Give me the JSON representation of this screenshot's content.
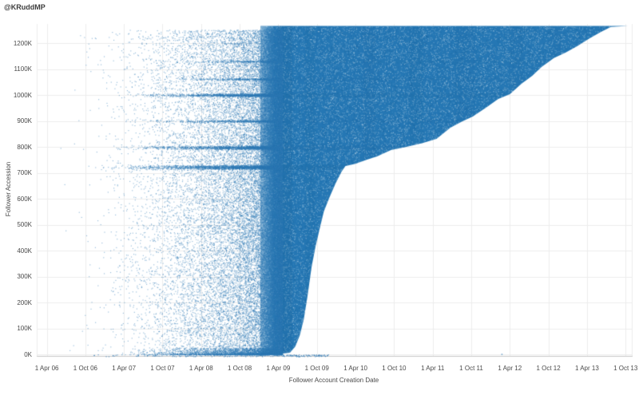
{
  "header": {
    "title": "@KRuddMP"
  },
  "chart_data": {
    "type": "scatter",
    "title": "@KRuddMP",
    "xlabel": "Follower Account Creation Date",
    "ylabel": "Follower Accession",
    "x_domain": [
      2006.12,
      2013.82
    ],
    "y_domain_k": [
      0,
      1274
    ],
    "x_ticks": [
      {
        "label": "1 Apr 06",
        "year": 2006.25
      },
      {
        "label": "1 Oct 06",
        "year": 2006.75
      },
      {
        "label": "1 Apr 07",
        "year": 2007.25
      },
      {
        "label": "1 Oct 07",
        "year": 2007.75
      },
      {
        "label": "1 Apr 08",
        "year": 2008.25
      },
      {
        "label": "1 Oct 08",
        "year": 2008.75
      },
      {
        "label": "1 Apr 09",
        "year": 2009.25
      },
      {
        "label": "1 Oct 09",
        "year": 2009.75
      },
      {
        "label": "1 Apr 10",
        "year": 2010.25
      },
      {
        "label": "1 Oct 10",
        "year": 2010.75
      },
      {
        "label": "1 Apr 11",
        "year": 2011.25
      },
      {
        "label": "1 Oct 11",
        "year": 2011.75
      },
      {
        "label": "1 Apr 12",
        "year": 2012.25
      },
      {
        "label": "1 Oct 12",
        "year": 2012.75
      },
      {
        "label": "1 Apr 13",
        "year": 2013.25
      },
      {
        "label": "1 Oct 13",
        "year": 2013.75
      }
    ],
    "y_ticks": [
      {
        "label": "0K",
        "value": 0
      },
      {
        "label": "100K",
        "value": 100
      },
      {
        "label": "200K",
        "value": 200
      },
      {
        "label": "300K",
        "value": 300
      },
      {
        "label": "400K",
        "value": 400
      },
      {
        "label": "500K",
        "value": 500
      },
      {
        "label": "600K",
        "value": 600
      },
      {
        "label": "700K",
        "value": 700
      },
      {
        "label": "800K",
        "value": 800
      },
      {
        "label": "900K",
        "value": 900
      },
      {
        "label": "1000K",
        "value": 1000
      },
      {
        "label": "1100K",
        "value": 1100
      },
      {
        "label": "1200K",
        "value": 1200
      }
    ],
    "point_color": "#2e79b5",
    "mass_color": "#2577b4",
    "overlay_dark": "#1b649c",
    "grid_color": "#ededed",
    "axis_line_color": "#c6c6c6",
    "text_color": "#4a4a4a",
    "mass_left_year": 2009.02,
    "mass_top_k": 1266,
    "mass_boundary": [
      [
        2009.2,
        0
      ],
      [
        2009.4,
        6
      ],
      [
        2009.47,
        30
      ],
      [
        2009.53,
        75
      ],
      [
        2009.58,
        135
      ],
      [
        2009.63,
        228
      ],
      [
        2009.68,
        335
      ],
      [
        2009.73,
        412
      ],
      [
        2009.79,
        489
      ],
      [
        2009.84,
        551
      ],
      [
        2009.91,
        603
      ],
      [
        2009.99,
        658
      ],
      [
        2010.07,
        705
      ],
      [
        2010.12,
        726
      ],
      [
        2010.25,
        735
      ],
      [
        2010.4,
        751
      ],
      [
        2010.53,
        763
      ],
      [
        2010.71,
        788
      ],
      [
        2010.91,
        800
      ],
      [
        2011.12,
        815
      ],
      [
        2011.3,
        831
      ],
      [
        2011.48,
        874
      ],
      [
        2011.63,
        898
      ],
      [
        2011.77,
        917
      ],
      [
        2011.94,
        951
      ],
      [
        2012.1,
        985
      ],
      [
        2012.25,
        1003
      ],
      [
        2012.4,
        1043
      ],
      [
        2012.54,
        1074
      ],
      [
        2012.66,
        1108
      ],
      [
        2012.82,
        1142
      ],
      [
        2012.97,
        1163
      ],
      [
        2013.12,
        1188
      ],
      [
        2013.28,
        1218
      ],
      [
        2013.43,
        1243
      ],
      [
        2013.56,
        1262
      ],
      [
        2013.78,
        1266
      ]
    ],
    "scatter_regions": [
      {
        "name": "pre-surge-scatter",
        "x_from": 2006.12,
        "x_to": 2009.3,
        "x_power": 0.22,
        "y_from": 0,
        "y_to": 1252,
        "y_power": 1,
        "n": 24000,
        "alpha": 0.5
      },
      {
        "name": "apr09-blend",
        "x_from": 2008.88,
        "x_to": 2009.3,
        "x_power": 0.3,
        "y_from": 0,
        "y_to": 1258,
        "y_power": 1,
        "n": 8000,
        "alpha": 0.5
      },
      {
        "name": "bottom-smear",
        "x_from": 2007.0,
        "x_to": 2009.3,
        "x_power": 0.3,
        "y_from": 0,
        "y_to": 26,
        "y_power": 2.6,
        "n": 3000,
        "alpha": 0.5
      }
    ],
    "bands": [
      {
        "k": 722,
        "half_k": 8,
        "x_from": 2006.6,
        "x_to": 2009.3,
        "x_power": 0.3,
        "n": 2400,
        "mass_to": 2010.35,
        "mass_alpha": 0.13
      },
      {
        "k": 798,
        "half_k": 7,
        "x_from": 2006.8,
        "x_to": 2009.3,
        "x_power": 0.3,
        "n": 1700,
        "mass_to": 2011.0,
        "mass_alpha": 0.1
      },
      {
        "k": 900,
        "half_k": 5,
        "x_from": 2007.1,
        "x_to": 2009.3,
        "x_power": 0.3,
        "n": 750,
        "mass_to": 2011.7,
        "mass_alpha": 0.05
      },
      {
        "k": 1000,
        "half_k": 6,
        "x_from": 2007.0,
        "x_to": 2009.3,
        "x_power": 0.3,
        "n": 1500,
        "mass_to": 2012.3,
        "mass_alpha": 0.08
      },
      {
        "k": 1062,
        "half_k": 4,
        "x_from": 2007.3,
        "x_to": 2009.3,
        "x_power": 0.3,
        "n": 480,
        "mass_to": 2012.5,
        "mass_alpha": 0.05
      },
      {
        "k": 1130,
        "half_k": 4,
        "x_from": 2007.5,
        "x_to": 2009.3,
        "x_power": 0.3,
        "n": 320,
        "mass_to": 2012.85,
        "mass_alpha": 0.04
      }
    ],
    "vertical_streaks": [
      {
        "from": 2009.24,
        "to": 2009.43,
        "alpha": 0.22
      },
      {
        "from": 2009.6,
        "to": 2009.72,
        "alpha": 0.09
      },
      {
        "from": 2010.35,
        "to": 2010.5,
        "alpha": 0.07
      },
      {
        "from": 2010.95,
        "to": 2011.12,
        "alpha": 0.09
      },
      {
        "from": 2011.55,
        "to": 2011.8,
        "alpha": 0.07
      },
      {
        "from": 2012.25,
        "to": 2012.42,
        "alpha": 0.07
      },
      {
        "from": 2012.78,
        "to": 2012.92,
        "alpha": 0.05
      }
    ],
    "speckle": {
      "white_n": 26000,
      "white_alpha": 0.3,
      "dark_n": 14000,
      "dark_alpha": 0.22,
      "dark_color": "#13578c",
      "mid_n": 8000,
      "mid_alpha": 0.25,
      "mid_color": "#6ea6cf"
    },
    "left_fade": {
      "x_from": 2009.02,
      "x_to": 2009.2,
      "alpha": 0.45
    },
    "baseline_dots": {
      "x_from": 2006.5,
      "x_to": 2009.9,
      "x_power": 0.45,
      "n": 230,
      "stray": [
        [
          2012.14,
          2
        ]
      ]
    }
  }
}
